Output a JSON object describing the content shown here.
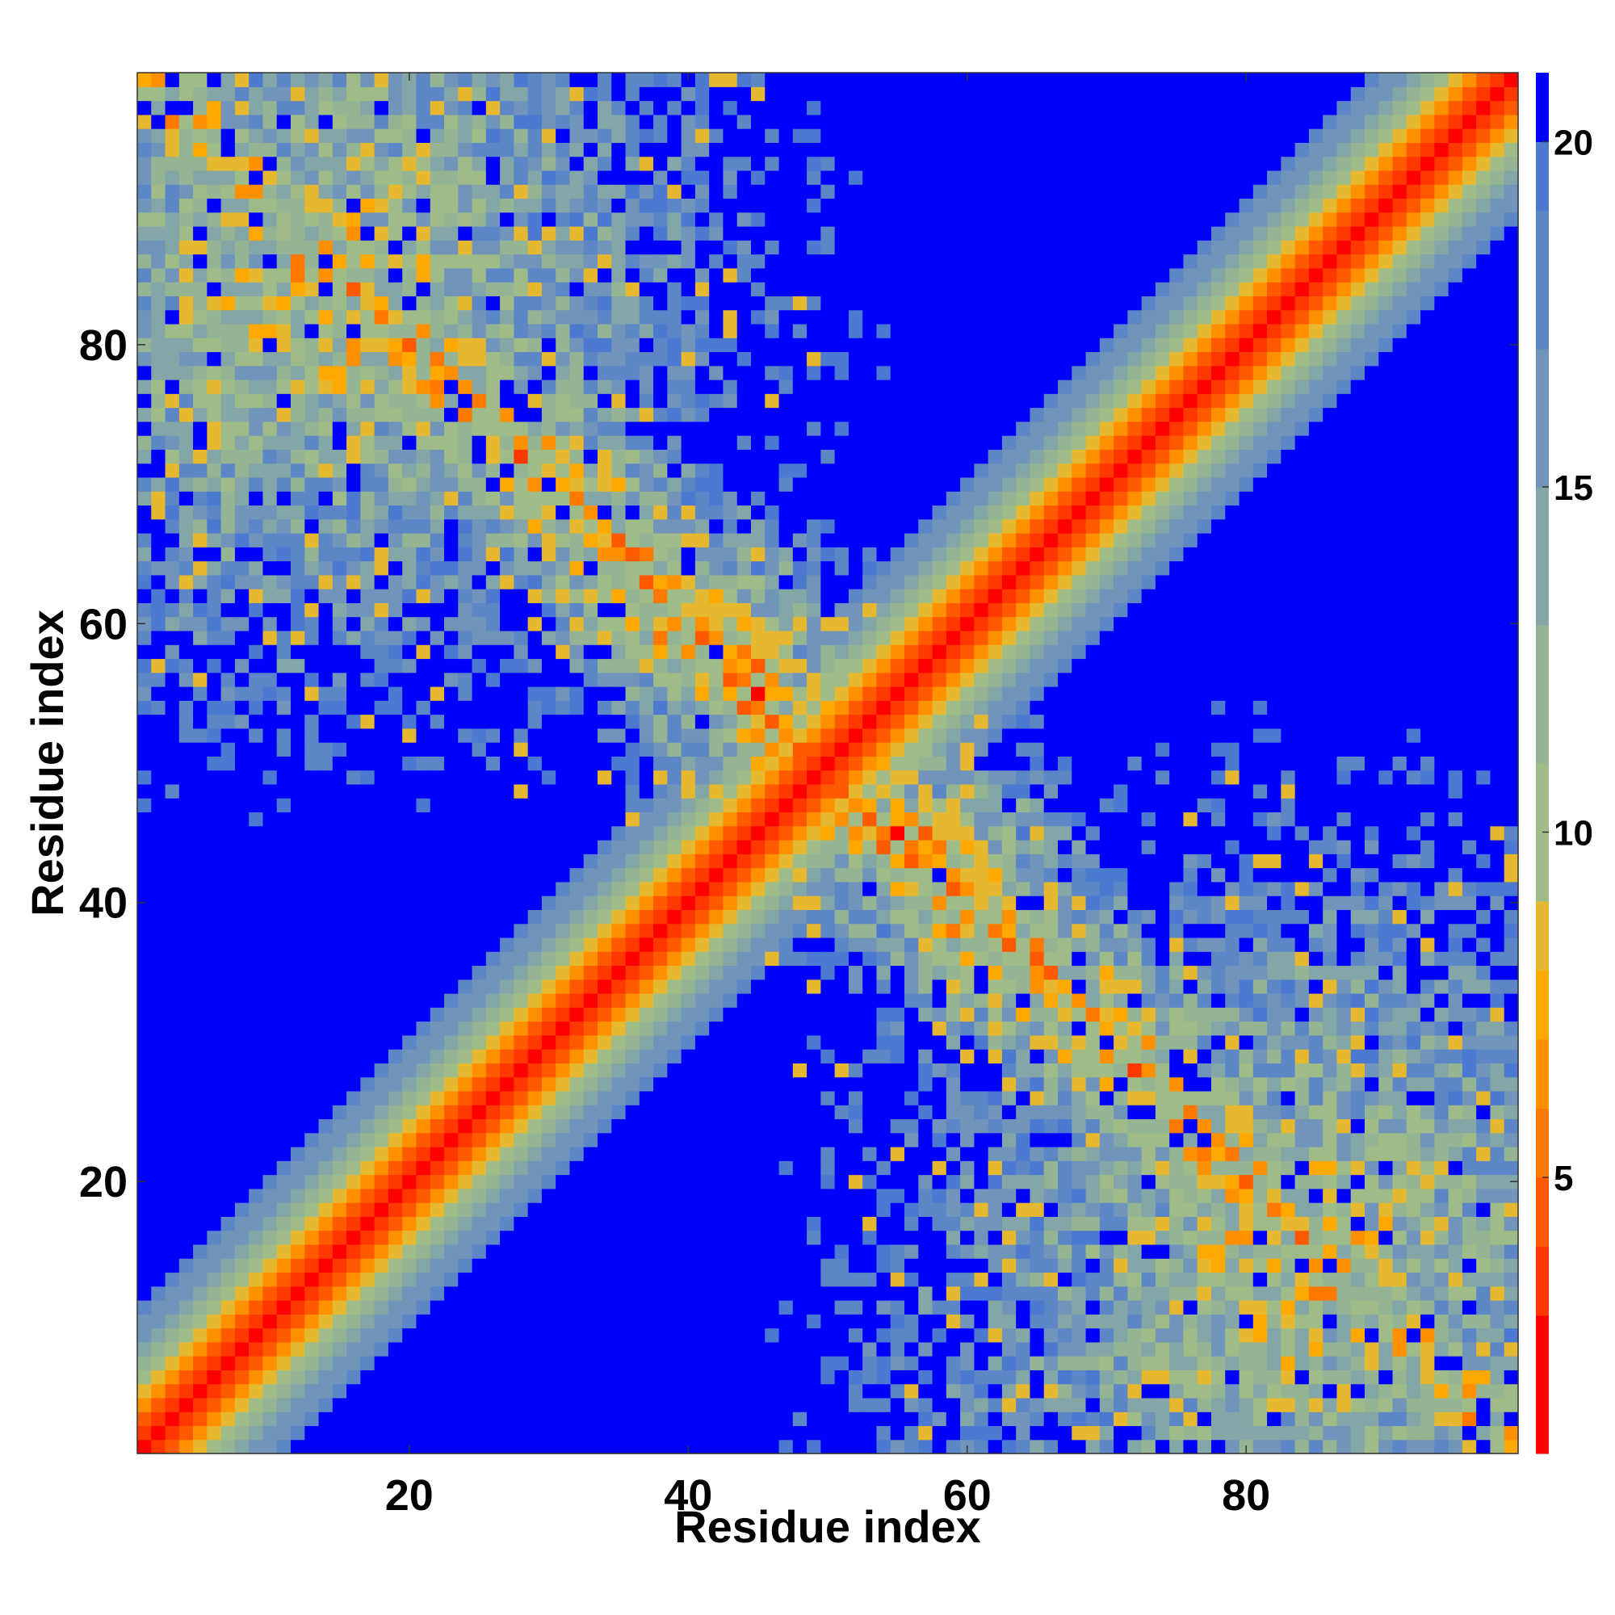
{
  "chart_data": {
    "type": "heatmap",
    "title": "",
    "xlabel": "Residue index",
    "ylabel": "Residue index",
    "n_residues": 99,
    "xlim": [
      1,
      99
    ],
    "ylim": [
      1,
      99
    ],
    "x_ticks": [
      20,
      40,
      60,
      80
    ],
    "y_ticks": [
      20,
      40,
      60,
      80
    ],
    "colorbar": {
      "ticks": [
        5,
        10,
        15,
        20
      ],
      "range": [
        1,
        21
      ],
      "levels": [
        {
          "max": 3,
          "color": "#ff0000"
        },
        {
          "max": 4,
          "color": "#ff3800"
        },
        {
          "max": 5,
          "color": "#ff5a00"
        },
        {
          "max": 6,
          "color": "#ff7800"
        },
        {
          "max": 7,
          "color": "#ff9000"
        },
        {
          "max": 8,
          "color": "#ffa800"
        },
        {
          "max": 9,
          "color": "#e6b830"
        },
        {
          "max": 11,
          "color": "#9fbc88"
        },
        {
          "max": 13,
          "color": "#94b494"
        },
        {
          "max": 15,
          "color": "#84a6a6"
        },
        {
          "max": 17,
          "color": "#7094ba"
        },
        {
          "max": 19,
          "color": "#5c86c6"
        },
        {
          "max": 20,
          "color": "#4c7ad0"
        },
        {
          "max": 21,
          "color": "#0000ff"
        }
      ]
    },
    "grid": false,
    "structure": {
      "description_note": "",
      "main_diagonal": "distance 0 at i=j increasing with |i-j|",
      "antidiagonal_band": "contacts near i+j=100",
      "corner_clusters": "contacts near (i~15,j~85) and (i~85,j~15) with sparse patterns"
    }
  }
}
